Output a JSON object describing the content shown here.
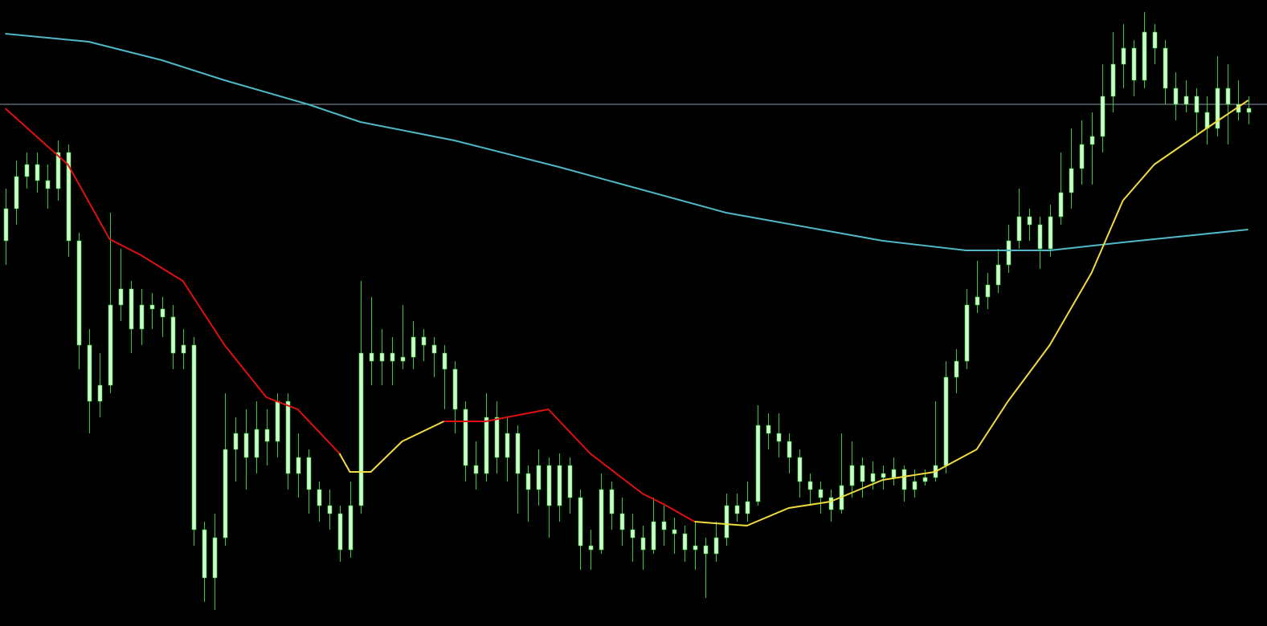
{
  "chart_data": {
    "type": "candlestick",
    "ylim": [
      0,
      780
    ],
    "xlim": [
      -0.5,
      120.8
    ],
    "wick_color": "#33cc33",
    "body_color": "#ccffcc",
    "hline": {
      "value": 650,
      "color": "#8a9bb0"
    },
    "ohlc": [
      [
        480,
        545,
        450,
        520
      ],
      [
        520,
        580,
        500,
        560
      ],
      [
        560,
        590,
        545,
        575
      ],
      [
        575,
        590,
        540,
        555
      ],
      [
        555,
        575,
        520,
        545
      ],
      [
        545,
        605,
        530,
        590
      ],
      [
        590,
        600,
        460,
        480
      ],
      [
        480,
        490,
        320,
        350
      ],
      [
        350,
        370,
        240,
        280
      ],
      [
        280,
        340,
        260,
        300
      ],
      [
        300,
        515,
        290,
        400
      ],
      [
        400,
        470,
        380,
        420
      ],
      [
        420,
        430,
        340,
        370
      ],
      [
        370,
        420,
        350,
        400
      ],
      [
        400,
        415,
        370,
        395
      ],
      [
        395,
        410,
        360,
        385
      ],
      [
        385,
        400,
        320,
        340
      ],
      [
        340,
        370,
        320,
        350
      ],
      [
        350,
        360,
        100,
        120
      ],
      [
        120,
        130,
        30,
        60
      ],
      [
        60,
        140,
        20,
        110
      ],
      [
        110,
        290,
        100,
        220
      ],
      [
        220,
        260,
        180,
        240
      ],
      [
        240,
        270,
        170,
        210
      ],
      [
        210,
        280,
        190,
        245
      ],
      [
        245,
        270,
        200,
        230
      ],
      [
        230,
        290,
        210,
        280
      ],
      [
        280,
        290,
        170,
        190
      ],
      [
        190,
        240,
        160,
        210
      ],
      [
        210,
        220,
        140,
        170
      ],
      [
        170,
        180,
        130,
        150
      ],
      [
        150,
        170,
        120,
        140
      ],
      [
        140,
        150,
        80,
        95
      ],
      [
        95,
        180,
        85,
        150
      ],
      [
        150,
        430,
        140,
        340
      ],
      [
        340,
        410,
        300,
        330
      ],
      [
        330,
        370,
        300,
        340
      ],
      [
        340,
        360,
        300,
        330
      ],
      [
        330,
        400,
        320,
        335
      ],
      [
        335,
        380,
        320,
        360
      ],
      [
        360,
        370,
        330,
        350
      ],
      [
        350,
        360,
        310,
        340
      ],
      [
        340,
        350,
        270,
        320
      ],
      [
        320,
        330,
        240,
        270
      ],
      [
        270,
        280,
        180,
        200
      ],
      [
        200,
        230,
        170,
        190
      ],
      [
        190,
        290,
        180,
        260
      ],
      [
        260,
        280,
        190,
        210
      ],
      [
        210,
        260,
        180,
        240
      ],
      [
        240,
        250,
        140,
        190
      ],
      [
        190,
        200,
        130,
        170
      ],
      [
        170,
        220,
        150,
        200
      ],
      [
        200,
        210,
        110,
        150
      ],
      [
        150,
        215,
        130,
        200
      ],
      [
        200,
        210,
        140,
        160
      ],
      [
        160,
        170,
        70,
        100
      ],
      [
        100,
        120,
        70,
        95
      ],
      [
        95,
        190,
        90,
        170
      ],
      [
        170,
        180,
        120,
        140
      ],
      [
        140,
        160,
        100,
        120
      ],
      [
        120,
        140,
        80,
        110
      ],
      [
        110,
        125,
        70,
        95
      ],
      [
        95,
        160,
        90,
        130
      ],
      [
        130,
        150,
        100,
        120
      ],
      [
        120,
        135,
        90,
        115
      ],
      [
        115,
        125,
        80,
        95
      ],
      [
        95,
        130,
        70,
        100
      ],
      [
        100,
        110,
        35,
        90
      ],
      [
        90,
        130,
        80,
        110
      ],
      [
        110,
        165,
        100,
        150
      ],
      [
        150,
        165,
        130,
        140
      ],
      [
        140,
        180,
        130,
        155
      ],
      [
        155,
        275,
        150,
        250
      ],
      [
        250,
        265,
        220,
        240
      ],
      [
        240,
        265,
        210,
        230
      ],
      [
        230,
        240,
        190,
        210
      ],
      [
        210,
        220,
        160,
        180
      ],
      [
        180,
        190,
        150,
        170
      ],
      [
        170,
        180,
        140,
        160
      ],
      [
        160,
        170,
        130,
        145
      ],
      [
        145,
        240,
        140,
        175
      ],
      [
        175,
        230,
        160,
        200
      ],
      [
        200,
        210,
        160,
        180
      ],
      [
        180,
        205,
        170,
        190
      ],
      [
        190,
        200,
        170,
        185
      ],
      [
        185,
        210,
        175,
        195
      ],
      [
        195,
        200,
        155,
        170
      ],
      [
        170,
        195,
        160,
        180
      ],
      [
        180,
        195,
        175,
        185
      ],
      [
        185,
        280,
        180,
        200
      ],
      [
        200,
        330,
        190,
        310
      ],
      [
        310,
        345,
        290,
        330
      ],
      [
        330,
        420,
        320,
        400
      ],
      [
        400,
        455,
        390,
        410
      ],
      [
        410,
        440,
        395,
        425
      ],
      [
        425,
        470,
        415,
        450
      ],
      [
        450,
        500,
        440,
        480
      ],
      [
        480,
        545,
        470,
        510
      ],
      [
        510,
        520,
        480,
        500
      ],
      [
        500,
        510,
        445,
        470
      ],
      [
        470,
        525,
        460,
        510
      ],
      [
        510,
        590,
        500,
        540
      ],
      [
        540,
        620,
        520,
        570
      ],
      [
        570,
        630,
        550,
        600
      ],
      [
        600,
        640,
        550,
        610
      ],
      [
        610,
        700,
        590,
        660
      ],
      [
        660,
        740,
        640,
        700
      ],
      [
        700,
        750,
        670,
        720
      ],
      [
        720,
        730,
        660,
        680
      ],
      [
        680,
        765,
        670,
        740
      ],
      [
        740,
        750,
        700,
        720
      ],
      [
        720,
        730,
        650,
        670
      ],
      [
        670,
        690,
        630,
        650
      ],
      [
        650,
        680,
        640,
        660
      ],
      [
        660,
        670,
        610,
        640
      ],
      [
        640,
        660,
        600,
        620
      ],
      [
        620,
        710,
        610,
        670
      ],
      [
        670,
        700,
        600,
        650
      ],
      [
        650,
        680,
        630,
        640
      ],
      [
        640,
        660,
        625,
        645
      ]
    ],
    "series": [
      {
        "color": "#4fb8c8",
        "x": [
          0,
          8,
          15,
          21,
          29,
          34,
          43,
          53,
          69,
          84,
          92,
          100,
          107,
          119
        ],
        "values": [
          738,
          728,
          705,
          680,
          650,
          628,
          605,
          572,
          515,
          480,
          468,
          468,
          478,
          494
        ]
      },
      {
        "color": "#e01010",
        "x": [
          0,
          6,
          10,
          13,
          17,
          21,
          25,
          28,
          32
        ],
        "values": [
          645,
          575,
          482,
          462,
          430,
          350,
          285,
          270,
          215
        ]
      },
      {
        "color": "#f0dc40",
        "x": [
          32,
          33,
          35,
          38,
          42
        ],
        "values": [
          215,
          192,
          192,
          230,
          255
        ]
      },
      {
        "color": "#e01010",
        "x": [
          42,
          46,
          52,
          56,
          61,
          63,
          66
        ],
        "values": [
          255,
          255,
          270,
          215,
          165,
          152,
          130
        ]
      },
      {
        "color": "#f0dc40",
        "x": [
          66,
          71,
          75,
          79,
          84,
          89,
          93,
          96,
          100,
          104,
          107,
          110,
          115,
          119
        ],
        "values": [
          130,
          125,
          147,
          155,
          182,
          192,
          220,
          280,
          350,
          440,
          530,
          575,
          620,
          655
        ]
      }
    ]
  }
}
